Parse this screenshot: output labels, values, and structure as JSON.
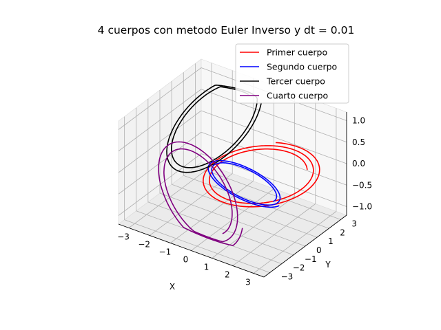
{
  "chart_data": {
    "type": "line",
    "projection": "3d",
    "title": "4 cuerpos con metodo Euler Inverso y dt = 0.01",
    "xlabel": "X",
    "ylabel": "Y",
    "zlabel": "",
    "xlim": [
      -3.5,
      3.5
    ],
    "ylim": [
      -3.5,
      3.5
    ],
    "zlim": [
      -1.2,
      1.2
    ],
    "xticks": [
      "−3",
      "−2",
      "−1",
      "0",
      "1",
      "2",
      "3"
    ],
    "yticks": [
      "−3",
      "−2",
      "−1",
      "0",
      "1",
      "2",
      "3"
    ],
    "zticks": [
      "−1.0",
      "−0.5",
      "0.0",
      "0.5",
      "1.0"
    ],
    "grid": true,
    "legend_position": "top-right",
    "series": [
      {
        "name": "Primer cuerpo",
        "color": "#ff0000",
        "orbit": {
          "cx": 1.2,
          "cy": 0.2,
          "cz": 0.0,
          "a": 2.4,
          "b": 1.4,
          "tilt": 0.7,
          "rot": 0.5,
          "turns": 2.2,
          "drift": 0.25
        }
      },
      {
        "name": "Segundo cuerpo",
        "color": "#0000ff",
        "orbit": {
          "cx": 0.6,
          "cy": 0.0,
          "cz": -0.25,
          "a": 1.9,
          "b": 0.9,
          "tilt": 0.15,
          "rot": -0.3,
          "turns": 2.0,
          "drift": 0.2
        }
      },
      {
        "name": "Tercer cuerpo",
        "color": "#000000",
        "orbit": {
          "cx": -1.5,
          "cy": 1.0,
          "cz": 0.55,
          "a": 2.6,
          "b": 1.3,
          "tilt": 1.0,
          "rot": 1.1,
          "turns": 1.9,
          "drift": 0.2
        }
      },
      {
        "name": "Cuarto cuerpo",
        "color": "#800080",
        "orbit": {
          "cx": -0.8,
          "cy": -1.4,
          "cz": -0.45,
          "a": 2.3,
          "b": 1.5,
          "tilt": 1.25,
          "rot": -0.8,
          "turns": 2.1,
          "drift": 0.3
        }
      }
    ]
  }
}
